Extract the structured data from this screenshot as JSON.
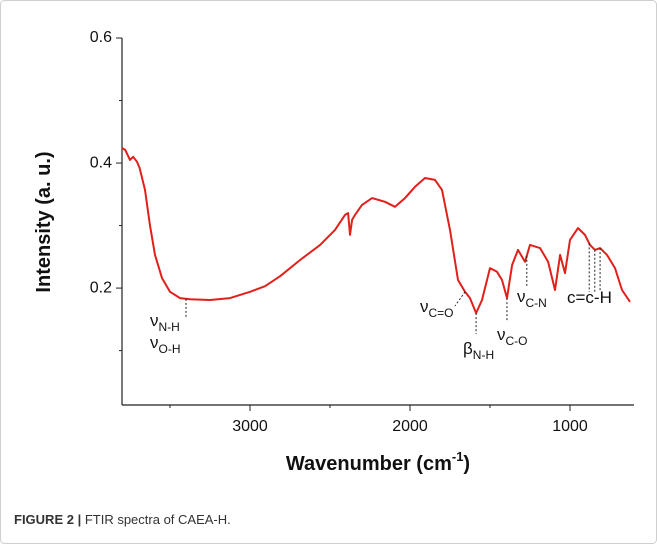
{
  "chart_data": {
    "type": "line",
    "ylabel": "Intensity (a. u.)",
    "xlabel": {
      "main": "Wavenumber (cm",
      "sup": "-1",
      "end": ")"
    },
    "xlim": [
      3800,
      600
    ],
    "xticks": [
      3000,
      2000,
      1000
    ],
    "xminor": [
      3500,
      2500,
      1500
    ],
    "ylim": [
      0.013,
      0.6
    ],
    "yticks": [
      0.2,
      0.4,
      0.6
    ],
    "yminor": [
      0.1,
      0.3,
      0.5
    ],
    "x": [
      3800,
      3780,
      3750,
      3730,
      3706,
      3690,
      3656,
      3625,
      3594,
      3550,
      3500,
      3437,
      3375,
      3250,
      3125,
      3000,
      2906,
      2812,
      2687,
      2562,
      2469,
      2406,
      2387,
      2375,
      2362,
      2344,
      2300,
      2237,
      2156,
      2094,
      2031,
      1969,
      1906,
      1844,
      1800,
      1750,
      1700,
      1656,
      1625,
      1587,
      1550,
      1500,
      1456,
      1425,
      1394,
      1362,
      1325,
      1281,
      1250,
      1187,
      1137,
      1094,
      1062,
      1031,
      1000,
      950,
      906,
      875,
      844,
      812,
      769,
      719,
      675,
      625
    ],
    "series": [
      {
        "color": "#e0201b",
        "values": [
          0.424,
          0.421,
          0.405,
          0.41,
          0.402,
          0.392,
          0.357,
          0.3,
          0.253,
          0.216,
          0.194,
          0.184,
          0.182,
          0.181,
          0.184,
          0.194,
          0.203,
          0.219,
          0.245,
          0.269,
          0.293,
          0.317,
          0.32,
          0.285,
          0.309,
          0.317,
          0.333,
          0.344,
          0.338,
          0.33,
          0.344,
          0.362,
          0.376,
          0.373,
          0.357,
          0.293,
          0.213,
          0.194,
          0.184,
          0.16,
          0.181,
          0.232,
          0.226,
          0.213,
          0.184,
          0.237,
          0.261,
          0.242,
          0.269,
          0.264,
          0.242,
          0.197,
          0.253,
          0.224,
          0.277,
          0.296,
          0.285,
          0.269,
          0.261,
          0.264,
          0.253,
          0.232,
          0.197,
          0.178
        ]
      }
    ],
    "annotations": [
      {
        "x": [
          3400
        ],
        "labels": [
          {
            "symbol": "ν",
            "sub": "N-H"
          },
          {
            "symbol": "ν",
            "sub": "O-H"
          }
        ]
      },
      {
        "x": [
          1656
        ],
        "labels": [
          {
            "symbol": "ν",
            "sub": "C=O"
          }
        ]
      },
      {
        "x": [
          1587
        ],
        "labels": [
          {
            "symbol": "β",
            "sub": "N-H"
          }
        ]
      },
      {
        "x": [
          1394
        ],
        "labels": [
          {
            "symbol": "ν",
            "sub": "C-O"
          }
        ]
      },
      {
        "x": [
          1270
        ],
        "labels": [
          {
            "symbol": "ν",
            "sub": "C-N"
          }
        ]
      },
      {
        "x": [
          880,
          845,
          812
        ],
        "labels": [
          {
            "symbol": "c=c-H"
          }
        ]
      }
    ]
  },
  "caption": {
    "label": "FIGURE 2 |",
    "text": "FTIR spectra of CAEA-H."
  }
}
